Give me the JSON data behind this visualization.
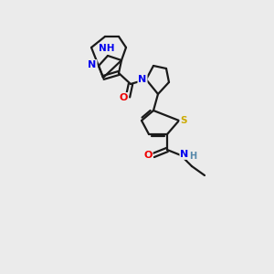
{
  "background_color": "#ebebeb",
  "bond_color": "#1a1a1a",
  "atoms": {
    "C": "#1a1a1a",
    "N": "#0000ee",
    "O": "#ee0000",
    "S": "#ccaa00",
    "H": "#5588aa"
  }
}
